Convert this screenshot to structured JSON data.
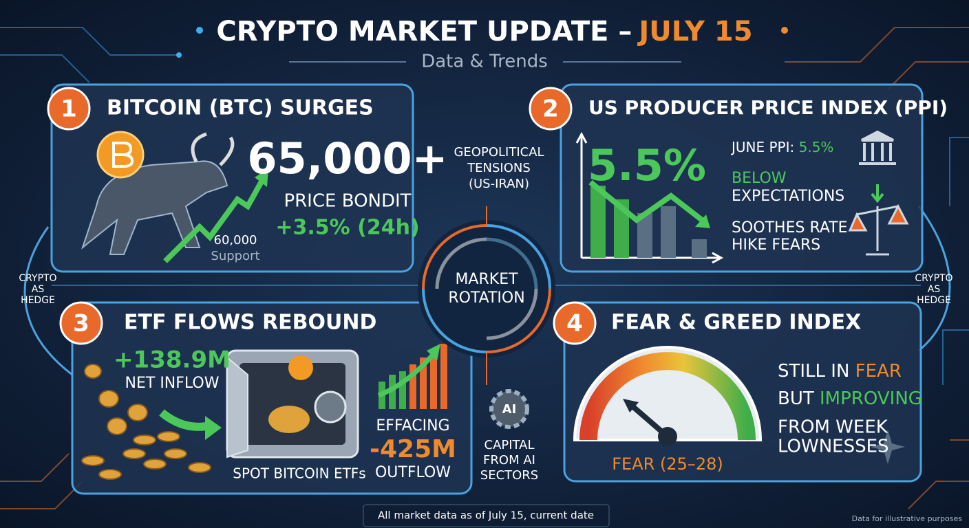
{
  "header": {
    "title": "CRYPTO MARKET UPDATE –",
    "title_date": "JULY 15",
    "subtitle": "Data & Trends"
  },
  "panels": [
    {
      "number": "1",
      "title": "BITCOIN (BTC) SURGES",
      "price": "65,000+",
      "price_label": "PRICE BONDIT",
      "change": "+3.5% (24h)",
      "support_level": "60,000",
      "support_label": "Support"
    },
    {
      "number": "2",
      "title": "US PRODUCER PRICE INDEX (PPI)",
      "headline": "5.5%",
      "ppi_label": "JUNE PPI: ",
      "ppi_value": "5.5%",
      "lines": [
        "BELOW",
        "EXPECTATIONS",
        "SOOTHES RATE",
        "HIKE FEARS"
      ]
    },
    {
      "number": "3",
      "title": "ETF FLOWS REBOUND",
      "inflow": "+138.9M",
      "inflow_label": "NET INFLOW",
      "safe_label": "SPOT BITCOIN ETFs",
      "outflow_pre": "EFFACING",
      "outflow": "-425M",
      "outflow_label": "OUTFLOW"
    },
    {
      "number": "4",
      "title": "FEAR & GREED INDEX",
      "lines": [
        [
          "STILL IN ",
          "FEAR"
        ],
        [
          "BUT ",
          "IMPROVING"
        ],
        [
          "FROM WEEK"
        ],
        [
          "LOWNESSES"
        ]
      ],
      "gauge_label": "FEAR (25–28)"
    }
  ],
  "center": {
    "label": [
      "MARKET",
      "ROTATION"
    ],
    "geopolitics": [
      "GEOPOLITICAL",
      "TENSIONS",
      "(US-IRAN)"
    ],
    "ai_icon": "AI",
    "ai_capital": [
      "CAPITAL",
      "FROM AI",
      "SECTORS"
    ]
  },
  "side_left": [
    "CRYPTO",
    "AS",
    "HEDGE"
  ],
  "side_right": [
    "CRYPTO",
    "AS",
    "HEDGE"
  ],
  "footer": {
    "note": "All market data as of July 15, current date",
    "disclaimer": "Data for illustrative purposes"
  }
}
